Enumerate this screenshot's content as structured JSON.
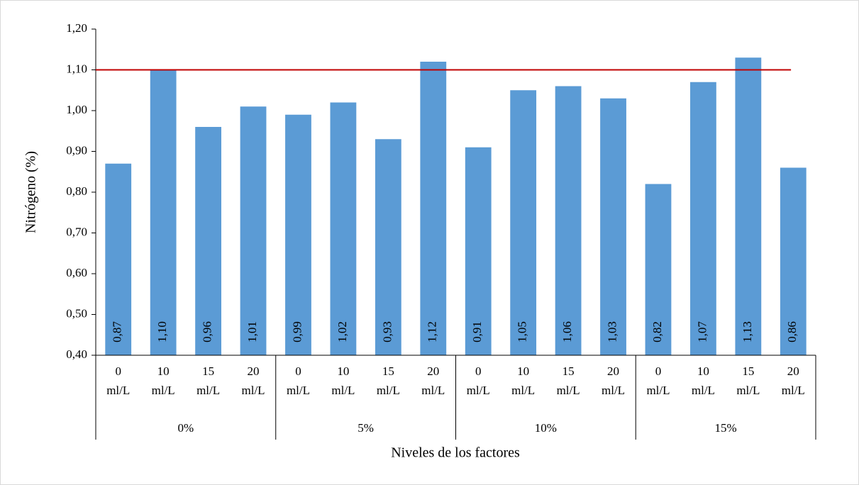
{
  "chart_data": {
    "type": "bar",
    "ylabel": "Nitrógeno (%)",
    "xlabel": "Niveles de los factores",
    "groups": [
      "0%",
      "5%",
      "10%",
      "15%"
    ],
    "categories": [
      "0 ml/L",
      "10 ml/L",
      "15 ml/L",
      "20 ml/L",
      "0 ml/L",
      "10 ml/L",
      "15 ml/L",
      "20 ml/L",
      "0 ml/L",
      "10 ml/L",
      "15 ml/L",
      "20 ml/L",
      "0 ml/L",
      "10 ml/L",
      "15 ml/L",
      "20 ml/L"
    ],
    "values": [
      0.87,
      1.1,
      0.96,
      1.01,
      0.99,
      1.02,
      0.93,
      1.12,
      0.91,
      1.05,
      1.06,
      1.03,
      0.82,
      1.07,
      1.13,
      0.86
    ],
    "value_labels": [
      "0,87",
      "1,10",
      "0,96",
      "1,01",
      "0,99",
      "1,02",
      "0,93",
      "1,12",
      "0,91",
      "1,05",
      "1,06",
      "1,03",
      "0,82",
      "1,07",
      "1,13",
      "0,86"
    ],
    "color": "#5b9bd5",
    "ylim": [
      0.4,
      1.2
    ],
    "yticks": [
      {
        "value": 0.4,
        "label": "0,40"
      },
      {
        "value": 0.5,
        "label": "0,50"
      },
      {
        "value": 0.6,
        "label": "0,60"
      },
      {
        "value": 0.7,
        "label": "0,70"
      },
      {
        "value": 0.8,
        "label": "0,80"
      },
      {
        "value": 0.9,
        "label": "0,90"
      },
      {
        "value": 1.0,
        "label": "1,00"
      },
      {
        "value": 1.1,
        "label": "1,10"
      },
      {
        "value": 1.2,
        "label": "1,20"
      }
    ],
    "reference_line": {
      "value": 1.1,
      "color": "#c00000"
    }
  }
}
